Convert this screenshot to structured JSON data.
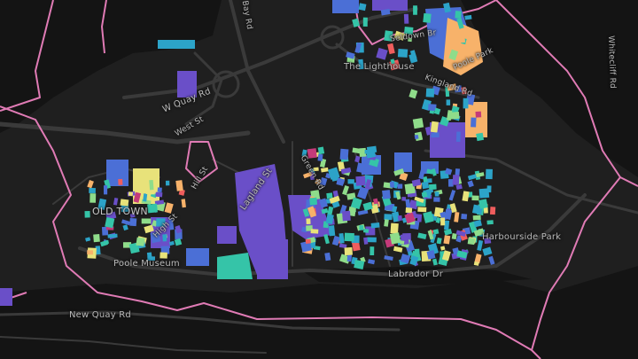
{
  "map": {
    "labels": {
      "w_quay_rd": "W Quay Rd",
      "west_st": "West St",
      "bay_rd": "Bay Rd",
      "seldown_br": "Seldown Br",
      "the_lighthouse": "The Lighthouse",
      "poole_park": "Poole Park",
      "kingland_rd": "Kingland Rd",
      "green_rd": "Green Rd",
      "lagland_st": "Lagland St",
      "hill_st": "Hill St",
      "high_st": "High St",
      "old_town": "OLD TOWN",
      "poole_museum": "Poole Museum",
      "labrador_dr": "Labrador Dr",
      "harbourside_park": "Harbourside Park",
      "new_quay_rd": "New Quay Rd",
      "whitecliff_rd": "Whitecliff Rd"
    },
    "colors": {
      "background": "#1f1f1f",
      "water": "#141414",
      "roads": "#3a3a3a",
      "boundary": "#e07bb5",
      "palette": [
        "#6a4fc8",
        "#4b6fd6",
        "#2ca3c8",
        "#35c4a8",
        "#8fdc8a",
        "#e8e27a",
        "#f7b26a",
        "#ef5d5d",
        "#c43a7a"
      ]
    }
  }
}
